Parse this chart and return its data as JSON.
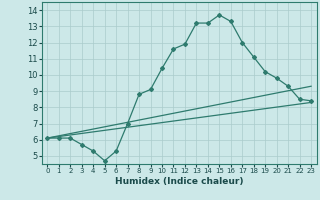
{
  "xlabel": "Humidex (Indice chaleur)",
  "background_color": "#cce8e8",
  "grid_color": "#aacccc",
  "line_color": "#2e7b6e",
  "xlim": [
    -0.5,
    23.5
  ],
  "ylim": [
    4.5,
    14.5
  ],
  "xticks": [
    0,
    1,
    2,
    3,
    4,
    5,
    6,
    7,
    8,
    9,
    10,
    11,
    12,
    13,
    14,
    15,
    16,
    17,
    18,
    19,
    20,
    21,
    22,
    23
  ],
  "yticks": [
    5,
    6,
    7,
    8,
    9,
    10,
    11,
    12,
    13,
    14
  ],
  "lines": [
    {
      "x": [
        0,
        1,
        2,
        3,
        4,
        5,
        6,
        7,
        8,
        9,
        10,
        11,
        12,
        13,
        14,
        15,
        16,
        17,
        18,
        19,
        20,
        21,
        22,
        23
      ],
      "y": [
        6.1,
        6.1,
        6.1,
        5.7,
        5.3,
        4.7,
        5.3,
        7.0,
        8.8,
        9.1,
        10.4,
        11.6,
        11.9,
        13.2,
        13.2,
        13.7,
        13.3,
        12.0,
        11.1,
        10.2,
        9.8,
        9.3,
        8.5,
        8.4
      ],
      "marker": true
    },
    {
      "x": [
        0,
        23
      ],
      "y": [
        6.1,
        8.3
      ],
      "marker": false
    },
    {
      "x": [
        0,
        23
      ],
      "y": [
        6.1,
        9.3
      ],
      "marker": false
    }
  ],
  "marker": "D",
  "markersize": 2.0,
  "linewidth": 0.9,
  "xlabel_fontsize": 6.5,
  "tick_fontsize_x": 5.0,
  "tick_fontsize_y": 6.0
}
